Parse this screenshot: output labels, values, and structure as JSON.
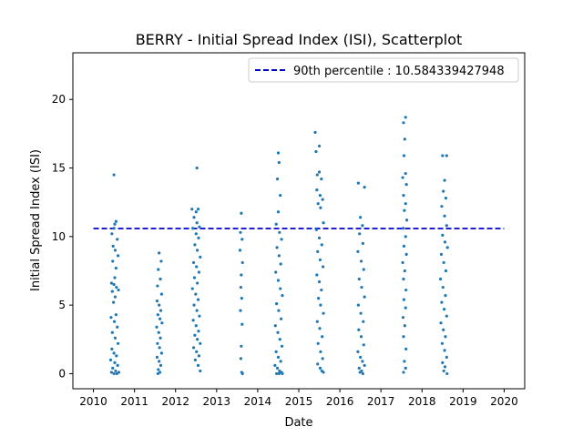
{
  "chart_data": {
    "type": "scatter",
    "title": "BERRY - Initial Spread Index (ISI), Scatterplot",
    "xlabel": "Date",
    "ylabel": "Initial Spread Index (ISI)",
    "x_ticks": [
      "2010",
      "2011",
      "2012",
      "2013",
      "2014",
      "2015",
      "2016",
      "2017",
      "2018",
      "2019",
      "2020"
    ],
    "y_ticks": [
      0,
      5,
      10,
      15,
      20
    ],
    "xlim": [
      2009.5,
      2020.5
    ],
    "ylim": [
      -1.1,
      23.4
    ],
    "grid": false,
    "legend_position": "top-right",
    "point_color": "#1f77b4",
    "line_color": "#0000cc",
    "reference_line": {
      "label": "90th percentile : 10.584339427948",
      "y": 10.584339427948,
      "style": "dashed"
    },
    "series": [
      {
        "values": [
          [
            2010.5,
            14.5
          ],
          [
            2010.52,
            10.9
          ],
          [
            2010.55,
            11.1
          ],
          [
            2010.5,
            10.6
          ],
          [
            2010.45,
            10.2
          ],
          [
            2010.58,
            9.8
          ],
          [
            2010.48,
            9.3
          ],
          [
            2010.53,
            9.0
          ],
          [
            2010.6,
            8.6
          ],
          [
            2010.47,
            8.2
          ],
          [
            2010.55,
            7.7
          ],
          [
            2010.52,
            7.0
          ],
          [
            2010.44,
            6.6
          ],
          [
            2010.5,
            6.5
          ],
          [
            2010.56,
            6.3
          ],
          [
            2010.61,
            6.1
          ],
          [
            2010.46,
            6.0
          ],
          [
            2010.53,
            5.6
          ],
          [
            2010.49,
            5.2
          ],
          [
            2010.55,
            4.3
          ],
          [
            2010.43,
            4.1
          ],
          [
            2010.51,
            3.8
          ],
          [
            2010.58,
            3.4
          ],
          [
            2010.46,
            3.0
          ],
          [
            2010.53,
            2.6
          ],
          [
            2010.6,
            2.2
          ],
          [
            2010.45,
            1.8
          ],
          [
            2010.5,
            1.5
          ],
          [
            2010.56,
            1.3
          ],
          [
            2010.42,
            1.0
          ],
          [
            2010.52,
            0.8
          ],
          [
            2010.59,
            0.6
          ],
          [
            2010.47,
            0.4
          ],
          [
            2010.54,
            0.2
          ],
          [
            2010.44,
            0.1
          ],
          [
            2010.5,
            0.0
          ],
          [
            2010.57,
            0.0
          ],
          [
            2010.62,
            0.1
          ],
          [
            2011.6,
            8.8
          ],
          [
            2011.65,
            8.2
          ],
          [
            2011.58,
            7.6
          ],
          [
            2011.63,
            6.9
          ],
          [
            2011.56,
            6.4
          ],
          [
            2011.66,
            5.8
          ],
          [
            2011.55,
            5.3
          ],
          [
            2011.6,
            5.0
          ],
          [
            2011.64,
            4.6
          ],
          [
            2011.57,
            4.3
          ],
          [
            2011.62,
            4.0
          ],
          [
            2011.67,
            3.7
          ],
          [
            2011.54,
            3.4
          ],
          [
            2011.59,
            3.0
          ],
          [
            2011.63,
            2.6
          ],
          [
            2011.56,
            2.2
          ],
          [
            2011.61,
            1.9
          ],
          [
            2011.66,
            1.5
          ],
          [
            2011.55,
            1.2
          ],
          [
            2011.6,
            0.9
          ],
          [
            2011.64,
            0.6
          ],
          [
            2011.58,
            0.3
          ],
          [
            2011.62,
            0.1
          ],
          [
            2011.57,
            0.0
          ],
          [
            2012.4,
            12.0
          ],
          [
            2012.5,
            11.8
          ],
          [
            2012.55,
            12.0
          ],
          [
            2012.45,
            11.4
          ],
          [
            2012.52,
            11.0
          ],
          [
            2012.58,
            10.7
          ],
          [
            2012.42,
            10.6
          ],
          [
            2012.5,
            10.2
          ],
          [
            2012.56,
            9.9
          ],
          [
            2012.47,
            9.4
          ],
          [
            2012.53,
            9.0
          ],
          [
            2012.6,
            8.5
          ],
          [
            2012.44,
            8.1
          ],
          [
            2012.51,
            7.8
          ],
          [
            2012.57,
            7.4
          ],
          [
            2012.46,
            7.0
          ],
          [
            2012.53,
            6.6
          ],
          [
            2012.41,
            6.2
          ],
          [
            2012.49,
            5.8
          ],
          [
            2012.55,
            5.4
          ],
          [
            2012.45,
            5.0
          ],
          [
            2012.52,
            4.6
          ],
          [
            2012.58,
            4.2
          ],
          [
            2012.43,
            3.9
          ],
          [
            2012.5,
            3.5
          ],
          [
            2012.56,
            3.1
          ],
          [
            2012.47,
            2.8
          ],
          [
            2012.53,
            2.5
          ],
          [
            2012.6,
            2.2
          ],
          [
            2012.44,
            1.9
          ],
          [
            2012.51,
            1.6
          ],
          [
            2012.57,
            1.3
          ],
          [
            2012.48,
            1.0
          ],
          [
            2012.55,
            0.6
          ],
          [
            2012.52,
            15.0
          ],
          [
            2012.6,
            0.2
          ],
          [
            2013.6,
            11.7
          ],
          [
            2013.58,
            10.3
          ],
          [
            2013.62,
            9.8
          ],
          [
            2013.57,
            9.0
          ],
          [
            2013.63,
            8.1
          ],
          [
            2013.6,
            7.2
          ],
          [
            2013.59,
            6.3
          ],
          [
            2013.61,
            5.5
          ],
          [
            2013.58,
            4.6
          ],
          [
            2013.62,
            3.6
          ],
          [
            2013.6,
            2.0
          ],
          [
            2013.59,
            1.1
          ],
          [
            2013.61,
            0.1
          ],
          [
            2013.63,
            0.0
          ],
          [
            2014.5,
            16.1
          ],
          [
            2014.52,
            15.4
          ],
          [
            2014.48,
            14.2
          ],
          [
            2014.55,
            13.0
          ],
          [
            2014.5,
            11.8
          ],
          [
            2014.45,
            10.9
          ],
          [
            2014.53,
            10.3
          ],
          [
            2014.58,
            9.8
          ],
          [
            2014.47,
            9.2
          ],
          [
            2014.52,
            8.6
          ],
          [
            2014.56,
            8.0
          ],
          [
            2014.44,
            7.4
          ],
          [
            2014.5,
            6.8
          ],
          [
            2014.55,
            6.2
          ],
          [
            2014.6,
            5.7
          ],
          [
            2014.46,
            5.1
          ],
          [
            2014.51,
            4.6
          ],
          [
            2014.57,
            4.0
          ],
          [
            2014.43,
            3.5
          ],
          [
            2014.49,
            3.0
          ],
          [
            2014.54,
            2.5
          ],
          [
            2014.59,
            2.0
          ],
          [
            2014.45,
            1.6
          ],
          [
            2014.5,
            1.2
          ],
          [
            2014.56,
            0.9
          ],
          [
            2014.42,
            0.6
          ],
          [
            2014.48,
            0.4
          ],
          [
            2014.53,
            0.2
          ],
          [
            2014.58,
            0.1
          ],
          [
            2014.46,
            0.0
          ],
          [
            2014.52,
            0.0
          ],
          [
            2014.6,
            0.0
          ],
          [
            2015.4,
            17.6
          ],
          [
            2015.5,
            16.6
          ],
          [
            2015.42,
            16.2
          ],
          [
            2015.45,
            14.5
          ],
          [
            2015.5,
            14.7
          ],
          [
            2015.55,
            14.2
          ],
          [
            2015.44,
            13.4
          ],
          [
            2015.52,
            13.0
          ],
          [
            2015.58,
            12.7
          ],
          [
            2015.47,
            12.4
          ],
          [
            2015.53,
            12.1
          ],
          [
            2015.6,
            11.0
          ],
          [
            2015.43,
            10.5
          ],
          [
            2015.5,
            9.9
          ],
          [
            2015.56,
            9.4
          ],
          [
            2015.46,
            8.9
          ],
          [
            2015.52,
            8.3
          ],
          [
            2015.59,
            7.8
          ],
          [
            2015.44,
            7.2
          ],
          [
            2015.5,
            6.7
          ],
          [
            2015.55,
            6.1
          ],
          [
            2015.48,
            5.5
          ],
          [
            2015.53,
            5.0
          ],
          [
            2015.6,
            4.4
          ],
          [
            2015.45,
            3.8
          ],
          [
            2015.51,
            3.3
          ],
          [
            2015.57,
            2.7
          ],
          [
            2015.47,
            2.2
          ],
          [
            2015.53,
            1.6
          ],
          [
            2015.58,
            1.1
          ],
          [
            2015.46,
            0.7
          ],
          [
            2015.52,
            0.4
          ],
          [
            2015.56,
            0.2
          ],
          [
            2015.6,
            0.1
          ],
          [
            2016.45,
            13.9
          ],
          [
            2016.6,
            13.6
          ],
          [
            2016.5,
            11.4
          ],
          [
            2016.55,
            10.8
          ],
          [
            2016.48,
            10.2
          ],
          [
            2016.56,
            9.5
          ],
          [
            2016.44,
            8.9
          ],
          [
            2016.52,
            8.2
          ],
          [
            2016.58,
            7.6
          ],
          [
            2016.47,
            6.9
          ],
          [
            2016.53,
            6.3
          ],
          [
            2016.6,
            5.6
          ],
          [
            2016.45,
            5.0
          ],
          [
            2016.51,
            4.4
          ],
          [
            2016.57,
            3.8
          ],
          [
            2016.46,
            3.2
          ],
          [
            2016.52,
            2.7
          ],
          [
            2016.58,
            2.1
          ],
          [
            2016.44,
            1.6
          ],
          [
            2016.5,
            1.2
          ],
          [
            2016.55,
            0.9
          ],
          [
            2016.6,
            0.6
          ],
          [
            2016.47,
            0.4
          ],
          [
            2016.53,
            0.2
          ],
          [
            2016.49,
            0.1
          ],
          [
            2016.56,
            0.0
          ],
          [
            2017.6,
            18.7
          ],
          [
            2017.55,
            18.3
          ],
          [
            2017.58,
            17.1
          ],
          [
            2017.56,
            15.9
          ],
          [
            2017.6,
            14.6
          ],
          [
            2017.53,
            14.3
          ],
          [
            2017.62,
            13.8
          ],
          [
            2017.55,
            13.0
          ],
          [
            2017.6,
            12.4
          ],
          [
            2017.57,
            11.9
          ],
          [
            2017.63,
            11.2
          ],
          [
            2017.54,
            10.6
          ],
          [
            2017.6,
            10.0
          ],
          [
            2017.56,
            9.3
          ],
          [
            2017.62,
            8.7
          ],
          [
            2017.53,
            8.1
          ],
          [
            2017.58,
            7.5
          ],
          [
            2017.55,
            6.9
          ],
          [
            2017.61,
            6.1
          ],
          [
            2017.56,
            5.4
          ],
          [
            2017.6,
            4.8
          ],
          [
            2017.54,
            4.1
          ],
          [
            2017.58,
            3.5
          ],
          [
            2017.55,
            2.7
          ],
          [
            2017.61,
            1.8
          ],
          [
            2017.57,
            0.9
          ],
          [
            2017.6,
            0.4
          ],
          [
            2017.55,
            0.1
          ],
          [
            2018.5,
            15.9
          ],
          [
            2018.6,
            15.9
          ],
          [
            2018.55,
            14.1
          ],
          [
            2018.52,
            13.3
          ],
          [
            2018.58,
            12.8
          ],
          [
            2018.48,
            12.2
          ],
          [
            2018.55,
            11.5
          ],
          [
            2018.6,
            10.8
          ],
          [
            2018.5,
            10.1
          ],
          [
            2018.56,
            9.6
          ],
          [
            2018.62,
            9.2
          ],
          [
            2018.47,
            8.7
          ],
          [
            2018.53,
            8.1
          ],
          [
            2018.58,
            7.5
          ],
          [
            2018.45,
            6.9
          ],
          [
            2018.51,
            6.3
          ],
          [
            2018.57,
            5.7
          ],
          [
            2018.48,
            5.2
          ],
          [
            2018.54,
            4.7
          ],
          [
            2018.6,
            4.2
          ],
          [
            2018.46,
            3.7
          ],
          [
            2018.52,
            3.2
          ],
          [
            2018.57,
            2.7
          ],
          [
            2018.49,
            2.2
          ],
          [
            2018.55,
            1.7
          ],
          [
            2018.6,
            1.2
          ],
          [
            2018.5,
            0.8
          ],
          [
            2018.56,
            0.5
          ],
          [
            2018.53,
            0.2
          ],
          [
            2018.61,
            0.0
          ]
        ]
      }
    ]
  }
}
